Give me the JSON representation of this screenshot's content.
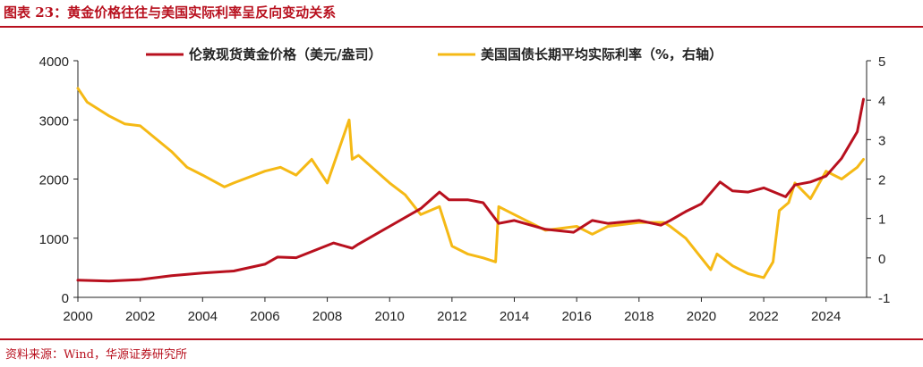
{
  "header": {
    "title": "图表 23：黄金价格往往与美国实际利率呈反向变动关系"
  },
  "footer": {
    "source": "资料来源：Wind，华源证券研究所"
  },
  "colors": {
    "gold": "#b8101e",
    "rate": "#f5b915",
    "accent": "#b8101e"
  },
  "chart_data": {
    "type": "line",
    "title": "黄金价格往往与美国实际利率呈反向变动关系",
    "x_ticks": [
      "2000",
      "2002",
      "2004",
      "2006",
      "2008",
      "2010",
      "2012",
      "2014",
      "2016",
      "2018",
      "2020",
      "2022",
      "2024"
    ],
    "xlim": [
      2000,
      2025.3
    ],
    "y_left_ticks": [
      "0",
      "1000",
      "2000",
      "3000",
      "4000"
    ],
    "y_left_lim": [
      0,
      4000
    ],
    "y_right_ticks": [
      "-1",
      "0",
      "1",
      "2",
      "3",
      "4",
      "5"
    ],
    "y_right_lim": [
      -1,
      5
    ],
    "series": [
      {
        "name": "伦敦现货黄金价格（美元/盎司）",
        "axis": "left",
        "x": [
          2000,
          2001,
          2002,
          2003,
          2004,
          2005,
          2006,
          2006.4,
          2007,
          2008.2,
          2008.8,
          2009,
          2010,
          2011,
          2011.6,
          2011.9,
          2012.5,
          2013,
          2013.5,
          2014,
          2015,
          2015.9,
          2016.5,
          2017,
          2018,
          2018.7,
          2019,
          2019.5,
          2020,
          2020.6,
          2021,
          2021.5,
          2022,
          2022.7,
          2023,
          2023.5,
          2024,
          2024.5,
          2025,
          2025.2
        ],
        "values": [
          290,
          275,
          300,
          365,
          410,
          445,
          560,
          680,
          670,
          920,
          830,
          900,
          1200,
          1500,
          1780,
          1650,
          1650,
          1600,
          1250,
          1300,
          1150,
          1100,
          1300,
          1250,
          1300,
          1220,
          1300,
          1450,
          1580,
          1950,
          1800,
          1780,
          1850,
          1700,
          1900,
          1950,
          2050,
          2350,
          2800,
          3350
        ]
      },
      {
        "name": "美国国债长期平均实际利率（%，右轴）",
        "axis": "right",
        "x": [
          2000,
          2000.3,
          2001,
          2001.5,
          2002,
          2003,
          2003.5,
          2004,
          2004.7,
          2005,
          2006,
          2006.5,
          2007,
          2007.5,
          2008,
          2008.7,
          2008.8,
          2009,
          2010,
          2010.5,
          2011,
          2011.6,
          2012,
          2012.5,
          2013,
          2013.4,
          2013.5,
          2014,
          2015,
          2016,
          2016.5,
          2017,
          2018,
          2018.8,
          2019,
          2019.5,
          2020,
          2020.3,
          2020.5,
          2021,
          2021.5,
          2022,
          2022.3,
          2022.5,
          2022.8,
          2023,
          2023.5,
          2024,
          2024.5,
          2025,
          2025.2
        ],
        "values": [
          4.3,
          3.95,
          3.6,
          3.4,
          3.35,
          2.7,
          2.3,
          2.1,
          1.8,
          1.9,
          2.2,
          2.3,
          2.1,
          2.5,
          1.9,
          3.5,
          2.5,
          2.6,
          1.9,
          1.6,
          1.1,
          1.3,
          0.3,
          0.1,
          0.0,
          -0.1,
          1.3,
          1.1,
          0.7,
          0.8,
          0.6,
          0.8,
          0.9,
          0.9,
          0.8,
          0.5,
          0.0,
          -0.3,
          0.1,
          -0.2,
          -0.4,
          -0.5,
          -0.1,
          1.2,
          1.4,
          1.9,
          1.5,
          2.2,
          2.0,
          2.3,
          2.5
        ]
      }
    ]
  }
}
